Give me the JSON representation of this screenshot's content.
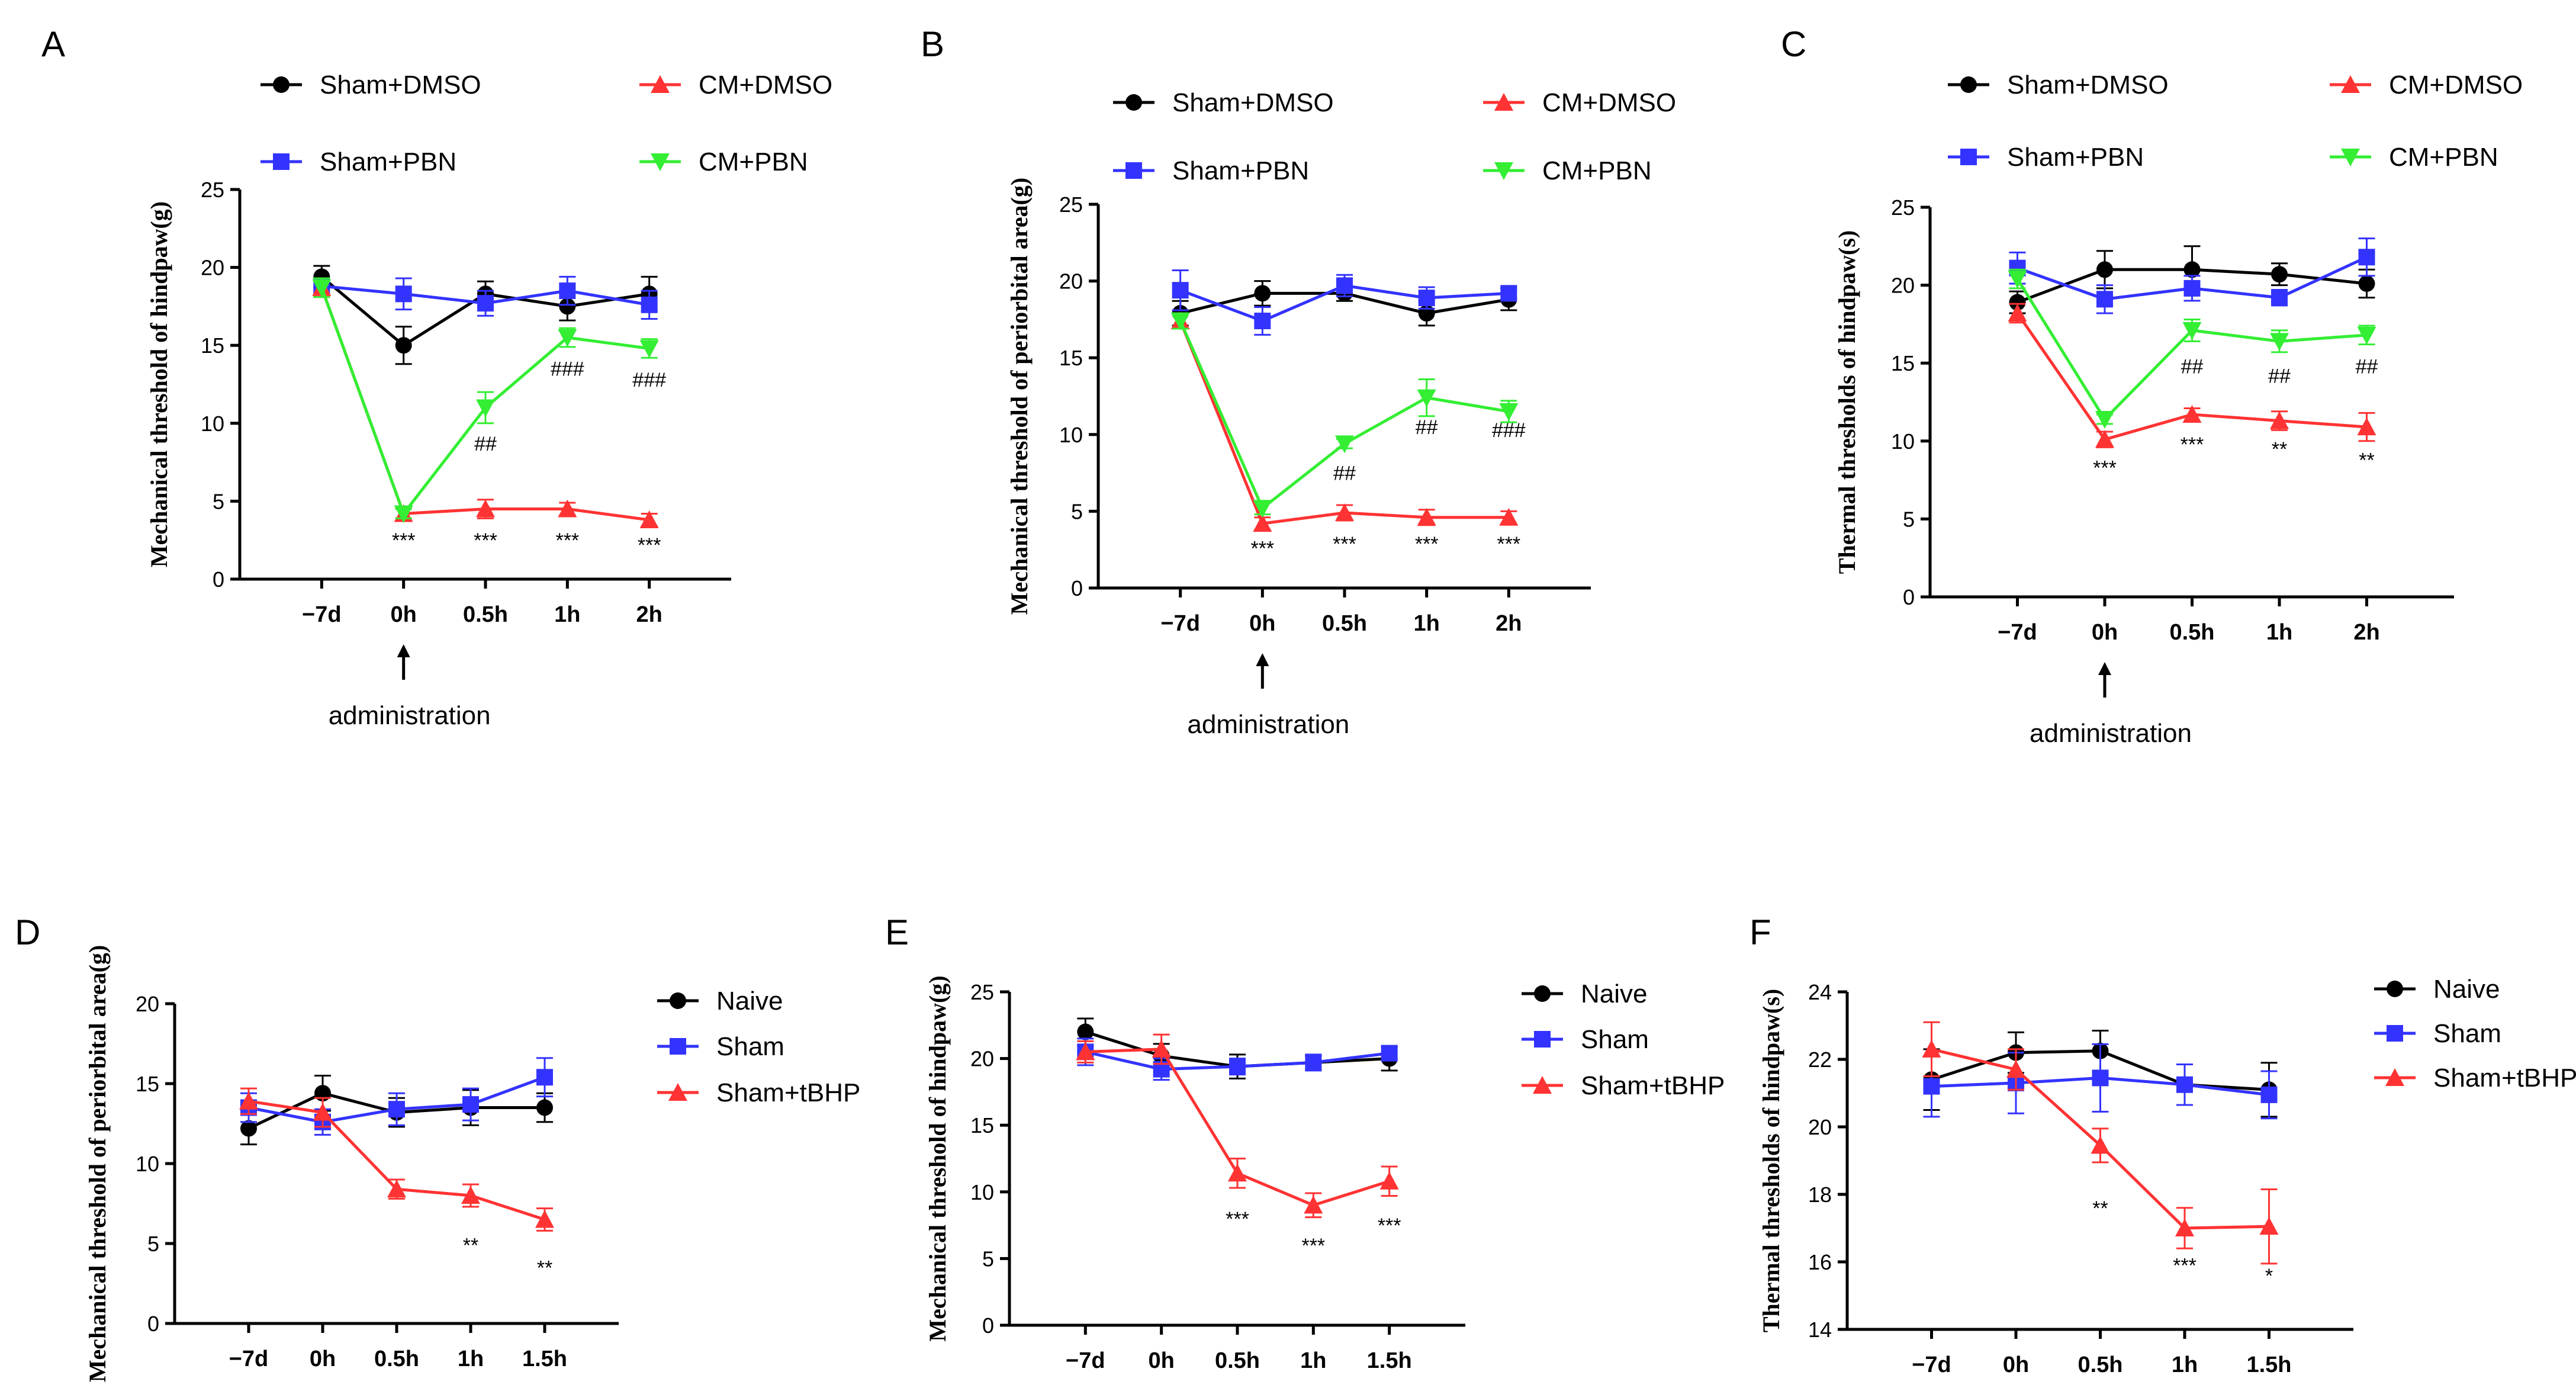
{
  "chart_data": [
    {
      "panel": "A",
      "type": "line",
      "ylabel": "Mechanical threshold of hindpaw(g)",
      "x": [
        "−7d",
        "0h",
        "0.5h",
        "1h",
        "2h"
      ],
      "ylim": [
        0,
        25
      ],
      "yticks": [
        0,
        5,
        10,
        15,
        20,
        25
      ],
      "administration_label": "administration",
      "series": [
        {
          "name": "Sham+DMSO",
          "color": "#000000",
          "marker": "circle",
          "values": [
            19.4,
            15.0,
            18.3,
            17.5,
            18.3
          ],
          "err": [
            0.7,
            1.2,
            0.8,
            0.9,
            1.1
          ]
        },
        {
          "name": "Sham+PBN",
          "color": "#3333ff",
          "marker": "square",
          "values": [
            18.8,
            18.3,
            17.7,
            18.5,
            17.6
          ],
          "err": [
            0.5,
            1.0,
            0.8,
            0.9,
            0.9
          ]
        },
        {
          "name": "CM+DMSO",
          "color": "#ff3333",
          "marker": "triangle-up",
          "values": [
            18.7,
            4.2,
            4.5,
            4.5,
            3.8
          ],
          "err": [
            0.6,
            0.3,
            0.6,
            0.4,
            0.4
          ]
        },
        {
          "name": "CM+PBN",
          "color": "#33ee33",
          "marker": "triangle-down",
          "values": [
            18.7,
            4.2,
            11.0,
            15.5,
            14.8
          ],
          "err": [
            0.6,
            0.3,
            1.0,
            0.6,
            0.6
          ]
        }
      ],
      "annotations": [
        {
          "x": 1,
          "y": 2.5,
          "text": "***"
        },
        {
          "x": 2,
          "y": 2.5,
          "text": "***"
        },
        {
          "x": 3,
          "y": 2.5,
          "text": "***"
        },
        {
          "x": 4,
          "y": 2.2,
          "text": "***"
        },
        {
          "x": 2,
          "y": 8.7,
          "text": "##"
        },
        {
          "x": 3,
          "y": 13.5,
          "text": "###"
        },
        {
          "x": 4,
          "y": 12.8,
          "text": "###"
        }
      ]
    },
    {
      "panel": "B",
      "type": "line",
      "ylabel": "Mechanical threshold of periorbital area(g)",
      "x": [
        "−7d",
        "0h",
        "0.5h",
        "1h",
        "2h"
      ],
      "ylim": [
        0,
        25
      ],
      "yticks": [
        0,
        5,
        10,
        15,
        20,
        25
      ],
      "administration_label": "administration",
      "series": [
        {
          "name": "Sham+DMSO",
          "color": "#000000",
          "marker": "circle",
          "values": [
            17.9,
            19.2,
            19.2,
            17.9,
            18.8
          ],
          "err": [
            0.8,
            0.8,
            0.5,
            0.8,
            0.7
          ]
        },
        {
          "name": "Sham+PBN",
          "color": "#3333ff",
          "marker": "square",
          "values": [
            19.4,
            17.4,
            19.7,
            18.9,
            19.2
          ],
          "err": [
            1.3,
            0.9,
            0.7,
            0.7,
            0.4
          ]
        },
        {
          "name": "CM+DMSO",
          "color": "#ff3333",
          "marker": "triangle-up",
          "values": [
            17.4,
            4.2,
            4.9,
            4.6,
            4.6
          ],
          "err": [
            0.5,
            0.4,
            0.5,
            0.5,
            0.4
          ]
        },
        {
          "name": "CM+PBN",
          "color": "#33ee33",
          "marker": "triangle-down",
          "values": [
            17.4,
            5.2,
            9.4,
            12.4,
            11.5
          ],
          "err": [
            0.5,
            0.4,
            0.3,
            1.2,
            0.7
          ]
        }
      ],
      "annotations": [
        {
          "x": 1,
          "y": 2.6,
          "text": "***"
        },
        {
          "x": 2,
          "y": 2.9,
          "text": "***"
        },
        {
          "x": 3,
          "y": 2.9,
          "text": "***"
        },
        {
          "x": 4,
          "y": 2.9,
          "text": "***"
        },
        {
          "x": 2,
          "y": 7.5,
          "text": "##"
        },
        {
          "x": 3,
          "y": 10.5,
          "text": "##"
        },
        {
          "x": 4,
          "y": 10.3,
          "text": "###"
        }
      ]
    },
    {
      "panel": "C",
      "type": "line",
      "ylabel": "Thermal thresholds of hindpaw(s)",
      "x": [
        "−7d",
        "0h",
        "0.5h",
        "1h",
        "2h"
      ],
      "ylim": [
        0,
        25
      ],
      "yticks": [
        0,
        5,
        10,
        15,
        20,
        25
      ],
      "administration_label": "administration",
      "series": [
        {
          "name": "Sham+DMSO",
          "color": "#000000",
          "marker": "circle",
          "values": [
            18.9,
            21.0,
            21.0,
            20.7,
            20.1
          ],
          "err": [
            0.7,
            1.2,
            1.5,
            0.7,
            0.9
          ]
        },
        {
          "name": "Sham+PBN",
          "color": "#3333ff",
          "marker": "square",
          "values": [
            21.1,
            19.1,
            19.8,
            19.2,
            21.8
          ],
          "err": [
            1.0,
            0.9,
            0.8,
            0.5,
            1.2
          ]
        },
        {
          "name": "CM+DMSO",
          "color": "#ff3333",
          "marker": "triangle-up",
          "values": [
            18.2,
            10.1,
            11.7,
            11.3,
            10.9
          ],
          "err": [
            0.6,
            0.5,
            0.4,
            0.6,
            0.9
          ]
        },
        {
          "name": "CM+PBN",
          "color": "#33ee33",
          "marker": "triangle-down",
          "values": [
            20.4,
            11.4,
            17.1,
            16.4,
            16.8
          ],
          "err": [
            0.6,
            0.3,
            0.7,
            0.7,
            0.6
          ]
        }
      ],
      "annotations": [
        {
          "x": 1,
          "y": 8.3,
          "text": "***"
        },
        {
          "x": 2,
          "y": 9.8,
          "text": "***"
        },
        {
          "x": 3,
          "y": 9.5,
          "text": "**"
        },
        {
          "x": 4,
          "y": 8.8,
          "text": "**"
        },
        {
          "x": 2,
          "y": 14.8,
          "text": "##"
        },
        {
          "x": 3,
          "y": 14.2,
          "text": "##"
        },
        {
          "x": 4,
          "y": 14.8,
          "text": "##"
        }
      ]
    },
    {
      "panel": "D",
      "type": "line",
      "ylabel": "Mechanical threshold of periorbital area(g)",
      "x": [
        "−7d",
        "0h",
        "0.5h",
        "1h",
        "1.5h"
      ],
      "ylim": [
        0,
        20
      ],
      "yticks": [
        0,
        5,
        10,
        15,
        20
      ],
      "series": [
        {
          "name": "Naive",
          "color": "#000000",
          "marker": "circle",
          "values": [
            12.2,
            14.4,
            13.2,
            13.5,
            13.5
          ],
          "err": [
            1.0,
            1.1,
            0.9,
            1.1,
            0.9
          ]
        },
        {
          "name": "Sham",
          "color": "#3333ff",
          "marker": "square",
          "values": [
            13.5,
            12.6,
            13.4,
            13.7,
            15.4
          ],
          "err": [
            0.9,
            0.8,
            1.0,
            1.0,
            1.2
          ]
        },
        {
          "name": "Sham+tBHP",
          "color": "#ff3333",
          "marker": "triangle-up",
          "values": [
            13.9,
            13.2,
            8.4,
            8.0,
            6.5
          ],
          "err": [
            0.8,
            0.9,
            0.6,
            0.7,
            0.7
          ]
        }
      ],
      "annotations": [
        {
          "x": 3,
          "y": 4.9,
          "text": "**"
        },
        {
          "x": 4,
          "y": 3.5,
          "text": "**"
        }
      ]
    },
    {
      "panel": "E",
      "type": "line",
      "ylabel": "Mechanical threshold of hindpaw(g)",
      "x": [
        "−7d",
        "0h",
        "0.5h",
        "1h",
        "1.5h"
      ],
      "ylim": [
        0,
        25
      ],
      "yticks": [
        0,
        5,
        10,
        15,
        20,
        25
      ],
      "series": [
        {
          "name": "Naive",
          "color": "#000000",
          "marker": "circle",
          "values": [
            22.0,
            20.2,
            19.4,
            19.7,
            20.0
          ],
          "err": [
            1.0,
            0.9,
            0.9,
            0.5,
            0.9
          ]
        },
        {
          "name": "Sham",
          "color": "#3333ff",
          "marker": "square",
          "values": [
            20.5,
            19.2,
            19.4,
            19.7,
            20.4
          ],
          "err": [
            1.0,
            0.8,
            0.6,
            0.6,
            0.5
          ]
        },
        {
          "name": "Sham+tBHP",
          "color": "#ff3333",
          "marker": "triangle-up",
          "values": [
            20.5,
            20.7,
            11.4,
            9.0,
            10.8
          ],
          "err": [
            0.8,
            1.1,
            1.1,
            0.9,
            1.1
          ]
        }
      ],
      "annotations": [
        {
          "x": 2,
          "y": 8.0,
          "text": "***"
        },
        {
          "x": 3,
          "y": 6.0,
          "text": "***"
        },
        {
          "x": 4,
          "y": 7.5,
          "text": "***"
        }
      ]
    },
    {
      "panel": "F",
      "type": "line",
      "ylabel": "Thermal thresholds of hindpaw(s)",
      "x": [
        "−7d",
        "0h",
        "0.5h",
        "1h",
        "1.5h"
      ],
      "ylim": [
        14,
        24
      ],
      "yticks": [
        14,
        16,
        18,
        20,
        22,
        24
      ],
      "series": [
        {
          "name": "Naive",
          "color": "#000000",
          "marker": "circle",
          "values": [
            21.4,
            22.2,
            22.25,
            21.25,
            21.1
          ],
          "err": [
            0.9,
            0.6,
            0.6,
            0.6,
            0.8
          ]
        },
        {
          "name": "Sham",
          "color": "#3333ff",
          "marker": "square",
          "values": [
            21.2,
            21.3,
            21.45,
            21.25,
            20.95
          ],
          "err": [
            0.9,
            0.9,
            1.0,
            0.6,
            0.7
          ]
        },
        {
          "name": "Sham+tBHP",
          "color": "#ff3333",
          "marker": "triangle-up",
          "values": [
            22.3,
            21.7,
            19.45,
            17.0,
            17.05
          ],
          "err": [
            0.8,
            0.6,
            0.5,
            0.6,
            1.1
          ]
        }
      ],
      "annotations": [
        {
          "x": 2,
          "y": 17.6,
          "text": "**"
        },
        {
          "x": 3,
          "y": 15.9,
          "text": "***"
        },
        {
          "x": 4,
          "y": 15.6,
          "text": "*"
        }
      ]
    }
  ]
}
